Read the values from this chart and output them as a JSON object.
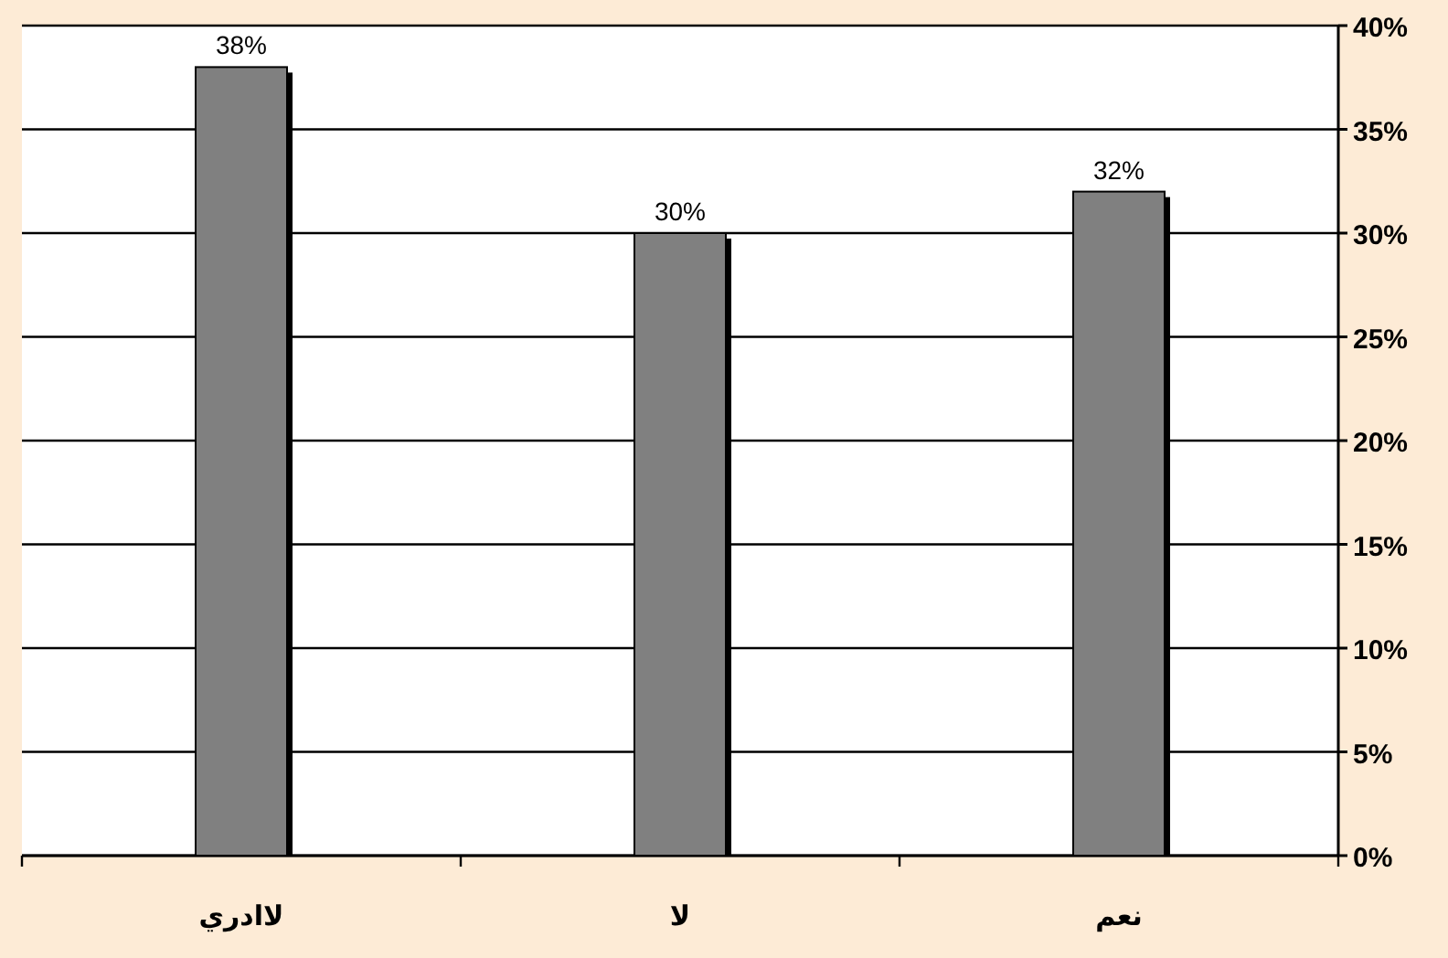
{
  "chart_data": {
    "type": "bar",
    "categories": [
      "لاادري",
      "لا",
      "نعم"
    ],
    "values": [
      38,
      30,
      32
    ],
    "color": "#808080",
    "value_labels": [
      "38%",
      "30%",
      "32%"
    ],
    "ylim": [
      0,
      40
    ],
    "yticks": [
      {
        "value": 0,
        "label": "0%"
      },
      {
        "value": 5,
        "label": "5%"
      },
      {
        "value": 10,
        "label": "10%"
      },
      {
        "value": 15,
        "label": "15%"
      },
      {
        "value": 20,
        "label": "20%"
      },
      {
        "value": 25,
        "label": "25%"
      },
      {
        "value": 30,
        "label": "30%"
      },
      {
        "value": 35,
        "label": "35%"
      },
      {
        "value": 40,
        "label": "40%"
      }
    ],
    "grid": "y"
  }
}
